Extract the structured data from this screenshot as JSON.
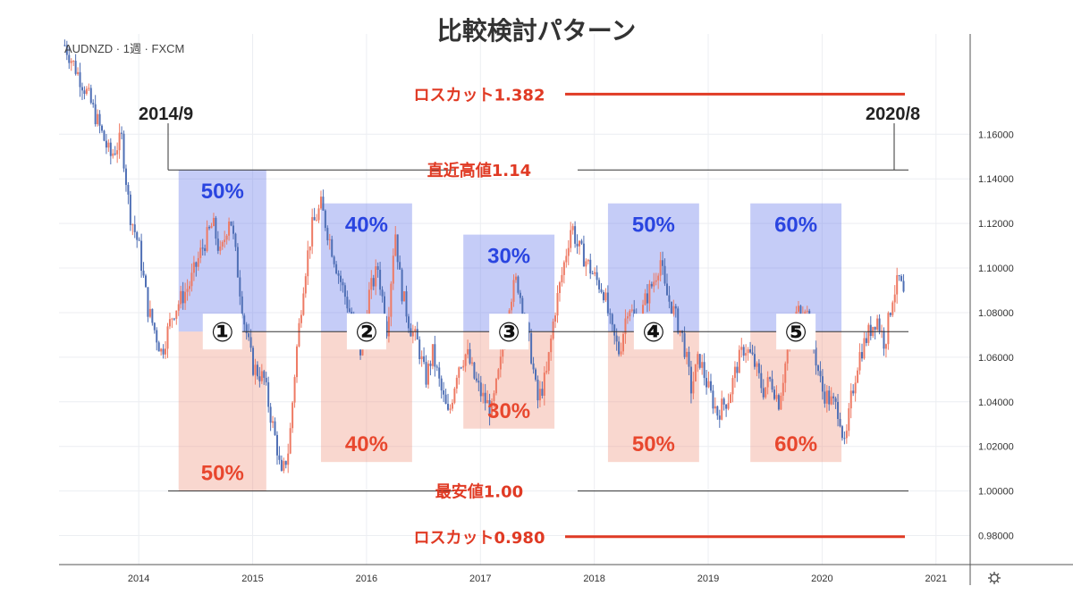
{
  "chart_data": {
    "type": "candlestick",
    "title": "比較検討パターン",
    "ticker_label": "AUDNZD · 1週 · FXCM",
    "ylim": [
      0.967,
      1.205
    ],
    "yticks": [
      "1.16000",
      "1.14000",
      "1.12000",
      "1.10000",
      "1.08000",
      "1.06000",
      "1.04000",
      "1.02000",
      "1.00000",
      "0.98000"
    ],
    "x_years": [
      "2014",
      "2015",
      "2016",
      "2017",
      "2018",
      "2019",
      "2020",
      "2021"
    ],
    "grid": true,
    "start_label": "2014/9",
    "end_label": "2020/8",
    "levels": [
      {
        "label": "ロスカット1.382",
        "value": 1.178,
        "style": "thick-red"
      },
      {
        "label": "直近高値1.14",
        "value": 1.144,
        "style": "thin-dark"
      },
      {
        "label": "最安値1.00",
        "value": 1.0,
        "style": "thin-dark"
      },
      {
        "label": "ロスカット0.980",
        "value": 0.9795,
        "style": "thick-red"
      }
    ],
    "center_line": 1.0715,
    "zones": [
      {
        "id": "①",
        "start": 2014.35,
        "end": 2015.12,
        "upper_pct": "50%",
        "lower_pct": "50%",
        "upper_top": 1.144,
        "lower_bottom": 1.0
      },
      {
        "id": "②",
        "start": 2015.6,
        "end": 2016.4,
        "upper_pct": "40%",
        "lower_pct": "40%",
        "upper_top": 1.129,
        "lower_bottom": 1.013
      },
      {
        "id": "③",
        "start": 2016.85,
        "end": 2017.65,
        "upper_pct": "30%",
        "lower_pct": "30%",
        "upper_top": 1.115,
        "lower_bottom": 1.028
      },
      {
        "id": "④",
        "start": 2018.12,
        "end": 2018.92,
        "upper_pct": "50%",
        "lower_pct": "50%",
        "upper_top": 1.129,
        "lower_bottom": 1.013
      },
      {
        "id": "⑤",
        "start": 2019.37,
        "end": 2020.17,
        "upper_pct": "60%",
        "lower_pct": "60%",
        "upper_top": 1.129,
        "lower_bottom": 1.013
      }
    ],
    "series": [
      {
        "values": [
          [
            2013.35,
            1.2
          ],
          [
            2013.55,
            1.178
          ],
          [
            2013.75,
            1.15
          ],
          [
            2013.85,
            1.158
          ],
          [
            2013.92,
            1.125
          ],
          [
            2014.0,
            1.11
          ],
          [
            2014.08,
            1.082
          ],
          [
            2014.2,
            1.062
          ],
          [
            2014.3,
            1.08
          ],
          [
            2014.45,
            1.093
          ],
          [
            2014.55,
            1.108
          ],
          [
            2014.65,
            1.12
          ],
          [
            2014.72,
            1.105
          ],
          [
            2014.8,
            1.125
          ],
          [
            2014.86,
            1.102
          ],
          [
            2014.92,
            1.078
          ],
          [
            2015.0,
            1.056
          ],
          [
            2015.1,
            1.05
          ],
          [
            2015.15,
            1.036
          ],
          [
            2015.22,
            1.018
          ],
          [
            2015.25,
            1.005
          ],
          [
            2015.32,
            1.02
          ],
          [
            2015.38,
            1.06
          ],
          [
            2015.45,
            1.095
          ],
          [
            2015.52,
            1.118
          ],
          [
            2015.6,
            1.128
          ],
          [
            2015.68,
            1.112
          ],
          [
            2015.75,
            1.098
          ],
          [
            2015.82,
            1.086
          ],
          [
            2015.9,
            1.072
          ],
          [
            2015.95,
            1.062
          ],
          [
            2016.02,
            1.088
          ],
          [
            2016.1,
            1.1
          ],
          [
            2016.18,
            1.072
          ],
          [
            2016.25,
            1.118
          ],
          [
            2016.3,
            1.092
          ],
          [
            2016.38,
            1.074
          ],
          [
            2016.45,
            1.066
          ],
          [
            2016.52,
            1.05
          ],
          [
            2016.58,
            1.062
          ],
          [
            2016.65,
            1.046
          ],
          [
            2016.72,
            1.033
          ],
          [
            2016.8,
            1.056
          ],
          [
            2016.88,
            1.062
          ],
          [
            2016.95,
            1.05
          ],
          [
            2017.02,
            1.042
          ],
          [
            2017.1,
            1.036
          ],
          [
            2017.18,
            1.058
          ],
          [
            2017.25,
            1.085
          ],
          [
            2017.32,
            1.095
          ],
          [
            2017.38,
            1.08
          ],
          [
            2017.45,
            1.06
          ],
          [
            2017.5,
            1.04
          ],
          [
            2017.58,
            1.052
          ],
          [
            2017.65,
            1.08
          ],
          [
            2017.72,
            1.098
          ],
          [
            2017.8,
            1.12
          ],
          [
            2017.85,
            1.11
          ],
          [
            2017.92,
            1.104
          ],
          [
            2018.0,
            1.096
          ],
          [
            2018.08,
            1.09
          ],
          [
            2018.15,
            1.072
          ],
          [
            2018.22,
            1.062
          ],
          [
            2018.3,
            1.085
          ],
          [
            2018.38,
            1.072
          ],
          [
            2018.45,
            1.086
          ],
          [
            2018.52,
            1.094
          ],
          [
            2018.58,
            1.104
          ],
          [
            2018.62,
            1.09
          ],
          [
            2018.7,
            1.08
          ],
          [
            2018.78,
            1.068
          ],
          [
            2018.85,
            1.046
          ],
          [
            2018.92,
            1.06
          ],
          [
            2019.0,
            1.046
          ],
          [
            2019.08,
            1.035
          ],
          [
            2019.18,
            1.042
          ],
          [
            2019.25,
            1.056
          ],
          [
            2019.32,
            1.065
          ],
          [
            2019.4,
            1.058
          ],
          [
            2019.48,
            1.045
          ],
          [
            2019.55,
            1.05
          ],
          [
            2019.62,
            1.04
          ],
          [
            2019.7,
            1.064
          ],
          [
            2019.78,
            1.08
          ],
          [
            2019.85,
            1.084
          ],
          [
            2019.9,
            1.072
          ],
          [
            2019.95,
            1.058
          ],
          [
            2020.0,
            1.045
          ],
          [
            2020.08,
            1.04
          ],
          [
            2020.15,
            1.036
          ],
          [
            2020.2,
            1.018
          ],
          [
            2020.25,
            1.04
          ],
          [
            2020.32,
            1.06
          ],
          [
            2020.4,
            1.07
          ],
          [
            2020.48,
            1.078
          ],
          [
            2020.55,
            1.066
          ],
          [
            2020.62,
            1.088
          ],
          [
            2020.68,
            1.095
          ],
          [
            2020.72,
            1.086
          ]
        ]
      }
    ]
  }
}
